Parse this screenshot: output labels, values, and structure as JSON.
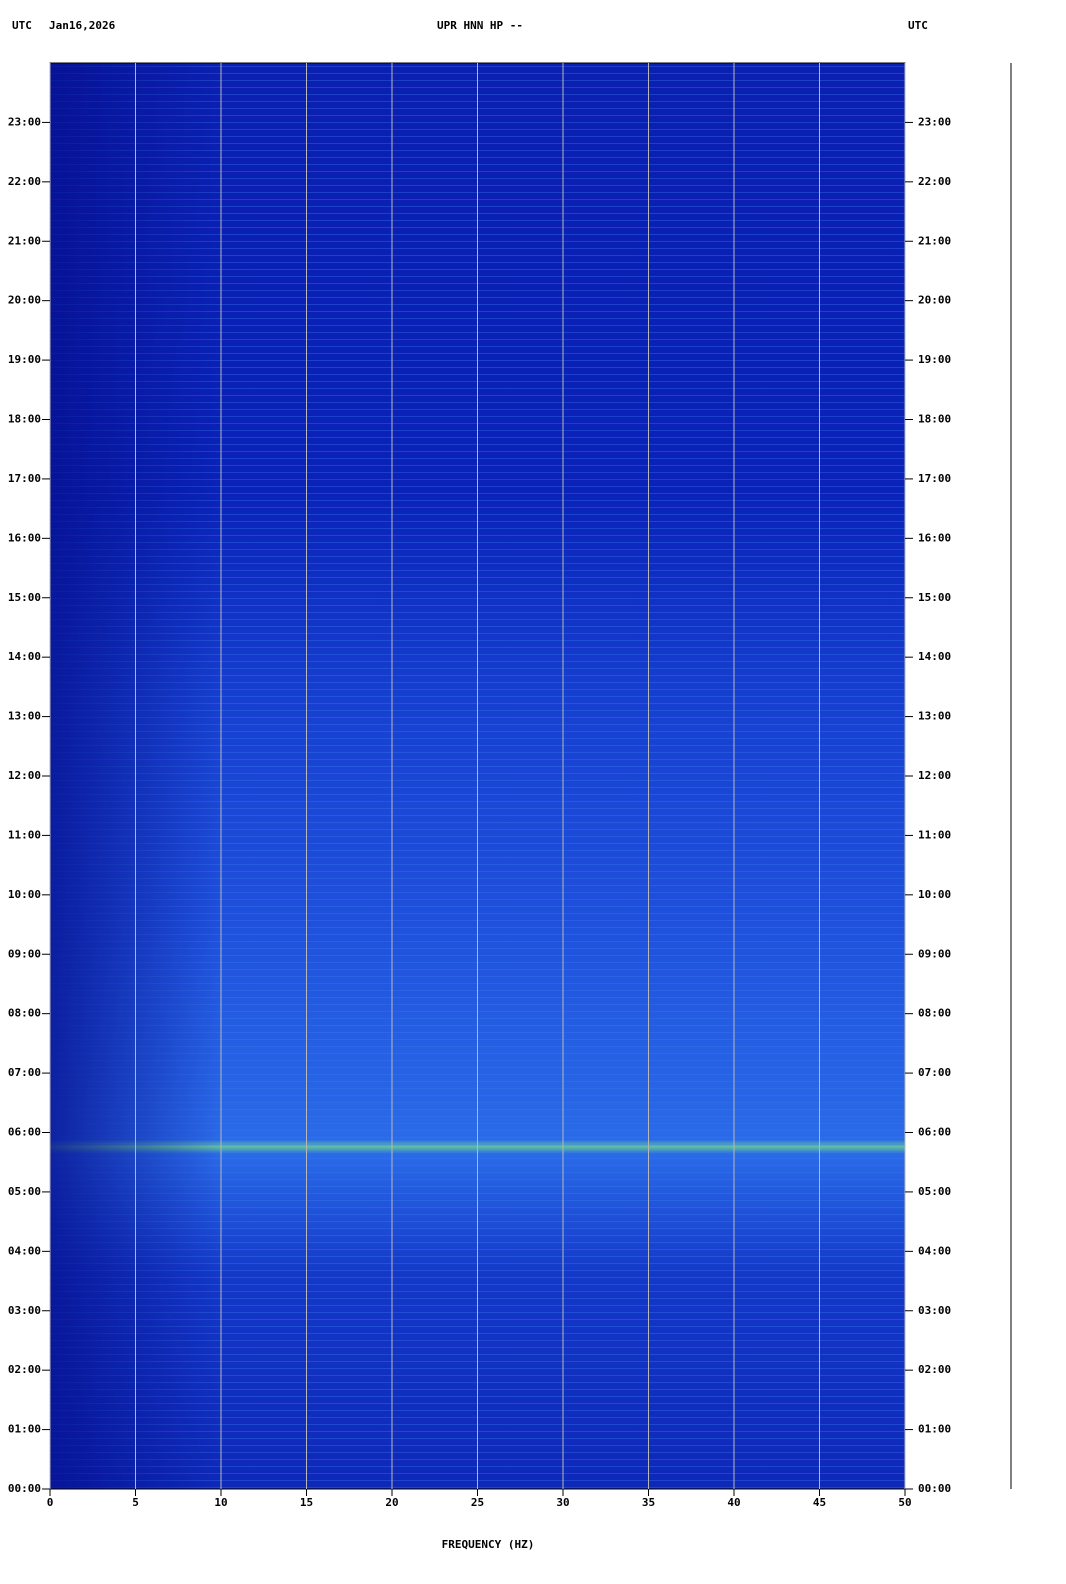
{
  "chart_data": {
    "type": "spectrogram",
    "timezone": "UTC",
    "date": "Jan16,2026",
    "title": "UPR HNN HP --",
    "x_label": "FREQUENCY (HZ)",
    "xlim": [
      0,
      50
    ],
    "xticks": [
      0,
      5,
      10,
      15,
      20,
      25,
      30,
      35,
      40,
      45,
      50
    ],
    "ylim": [
      0,
      24
    ],
    "yticks": [
      {
        "value": 0,
        "label": "00:00"
      },
      {
        "value": 1,
        "label": "01:00"
      },
      {
        "value": 2,
        "label": "02:00"
      },
      {
        "value": 3,
        "label": "03:00"
      },
      {
        "value": 4,
        "label": "04:00"
      },
      {
        "value": 5,
        "label": "05:00"
      },
      {
        "value": 6,
        "label": "06:00"
      },
      {
        "value": 7,
        "label": "07:00"
      },
      {
        "value": 8,
        "label": "08:00"
      },
      {
        "value": 9,
        "label": "09:00"
      },
      {
        "value": 10,
        "label": "10:00"
      },
      {
        "value": 11,
        "label": "11:00"
      },
      {
        "value": 12,
        "label": "12:00"
      },
      {
        "value": 13,
        "label": "13:00"
      },
      {
        "value": 14,
        "label": "14:00"
      },
      {
        "value": 15,
        "label": "15:00"
      },
      {
        "value": 16,
        "label": "16:00"
      },
      {
        "value": 17,
        "label": "17:00"
      },
      {
        "value": 18,
        "label": "18:00"
      },
      {
        "value": 19,
        "label": "19:00"
      },
      {
        "value": 20,
        "label": "20:00"
      },
      {
        "value": 21,
        "label": "21:00"
      },
      {
        "value": 22,
        "label": "22:00"
      },
      {
        "value": 23,
        "label": "23:00"
      }
    ],
    "grid": true
  }
}
